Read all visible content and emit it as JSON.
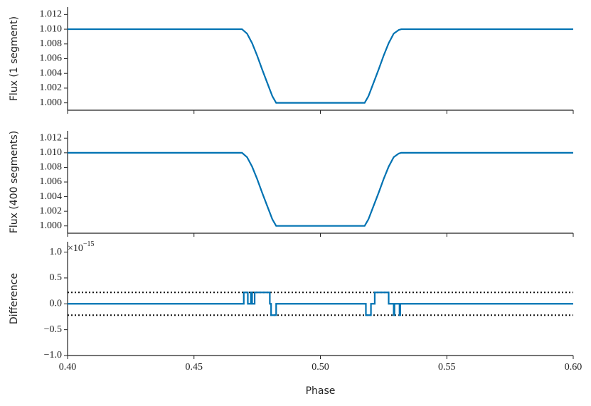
{
  "chart_data": [
    {
      "type": "line",
      "ylabel": "Flux (1 segment)",
      "xlim": [
        0.4,
        0.6
      ],
      "ylim": [
        0.999,
        1.013
      ],
      "yticks": [
        {
          "value": 1.0,
          "label": "1.000"
        },
        {
          "value": 1.002,
          "label": "1.002"
        },
        {
          "value": 1.004,
          "label": "1.004"
        },
        {
          "value": 1.006,
          "label": "1.006"
        },
        {
          "value": 1.008,
          "label": "1.008"
        },
        {
          "value": 1.01,
          "label": "1.010"
        },
        {
          "value": 1.012,
          "label": "1.012"
        }
      ],
      "color": "#0072b2",
      "x": [
        0.4,
        0.469,
        0.471,
        0.473,
        0.475,
        0.477,
        0.479,
        0.481,
        0.4825,
        0.5175,
        0.519,
        0.521,
        0.523,
        0.525,
        0.527,
        0.529,
        0.531,
        0.532,
        0.6
      ],
      "values": [
        1.01,
        1.01,
        1.0094,
        1.0081,
        1.0064,
        1.0045,
        1.0027,
        1.0009,
        1.0,
        1.0,
        1.0009,
        1.0027,
        1.0045,
        1.0064,
        1.0081,
        1.0094,
        1.0099,
        1.01,
        1.01
      ]
    },
    {
      "type": "line",
      "ylabel": "Flux (400 segments)",
      "xlim": [
        0.4,
        0.6
      ],
      "ylim": [
        0.999,
        1.013
      ],
      "yticks": [
        {
          "value": 1.0,
          "label": "1.000"
        },
        {
          "value": 1.002,
          "label": "1.002"
        },
        {
          "value": 1.004,
          "label": "1.004"
        },
        {
          "value": 1.006,
          "label": "1.006"
        },
        {
          "value": 1.008,
          "label": "1.008"
        },
        {
          "value": 1.01,
          "label": "1.010"
        },
        {
          "value": 1.012,
          "label": "1.012"
        }
      ],
      "color": "#0072b2",
      "x": [
        0.4,
        0.469,
        0.471,
        0.473,
        0.475,
        0.477,
        0.479,
        0.481,
        0.4825,
        0.5175,
        0.519,
        0.521,
        0.523,
        0.525,
        0.527,
        0.529,
        0.531,
        0.532,
        0.6
      ],
      "values": [
        1.01,
        1.01,
        1.0094,
        1.0081,
        1.0064,
        1.0045,
        1.0027,
        1.0009,
        1.0,
        1.0,
        1.0009,
        1.0027,
        1.0045,
        1.0064,
        1.0081,
        1.0094,
        1.0099,
        1.01,
        1.01
      ]
    },
    {
      "type": "line",
      "ylabel": "Difference",
      "xlabel": "Phase",
      "offset_label": {
        "base": "×10",
        "exponent": "−15"
      },
      "xlim": [
        0.4,
        0.6
      ],
      "ylim": [
        -1.0,
        1.2
      ],
      "xticks": [
        {
          "value": 0.4,
          "label": "0.40"
        },
        {
          "value": 0.45,
          "label": "0.45"
        },
        {
          "value": 0.5,
          "label": "0.50"
        },
        {
          "value": 0.55,
          "label": "0.55"
        },
        {
          "value": 0.6,
          "label": "0.60"
        }
      ],
      "yticks": [
        {
          "value": -1.0,
          "label": "−1.0"
        },
        {
          "value": -0.5,
          "label": "−0.5"
        },
        {
          "value": 0.0,
          "label": "0.0"
        },
        {
          "value": 0.5,
          "label": "0.5"
        },
        {
          "value": 1.0,
          "label": "1.0"
        }
      ],
      "reference_lines": [
        0.22,
        -0.22
      ],
      "color": "#0072b2",
      "x": [
        0.4,
        0.4697,
        0.4697,
        0.4713,
        0.4713,
        0.4725,
        0.4725,
        0.473,
        0.473,
        0.474,
        0.474,
        0.48,
        0.48,
        0.4805,
        0.4805,
        0.4825,
        0.4825,
        0.518,
        0.518,
        0.52,
        0.52,
        0.5215,
        0.5215,
        0.527,
        0.527,
        0.529,
        0.529,
        0.5293,
        0.5293,
        0.5313,
        0.5313,
        0.5316,
        0.5316,
        0.6
      ],
      "values": [
        0,
        0,
        0.22,
        0.22,
        0,
        0,
        0.22,
        0.22,
        0,
        0,
        0.22,
        0.22,
        0,
        0,
        -0.22,
        -0.22,
        0,
        0,
        -0.22,
        -0.22,
        0,
        0,
        0.22,
        0.22,
        0,
        0,
        -0.22,
        -0.22,
        0,
        0,
        -0.22,
        -0.22,
        0,
        0
      ]
    }
  ]
}
